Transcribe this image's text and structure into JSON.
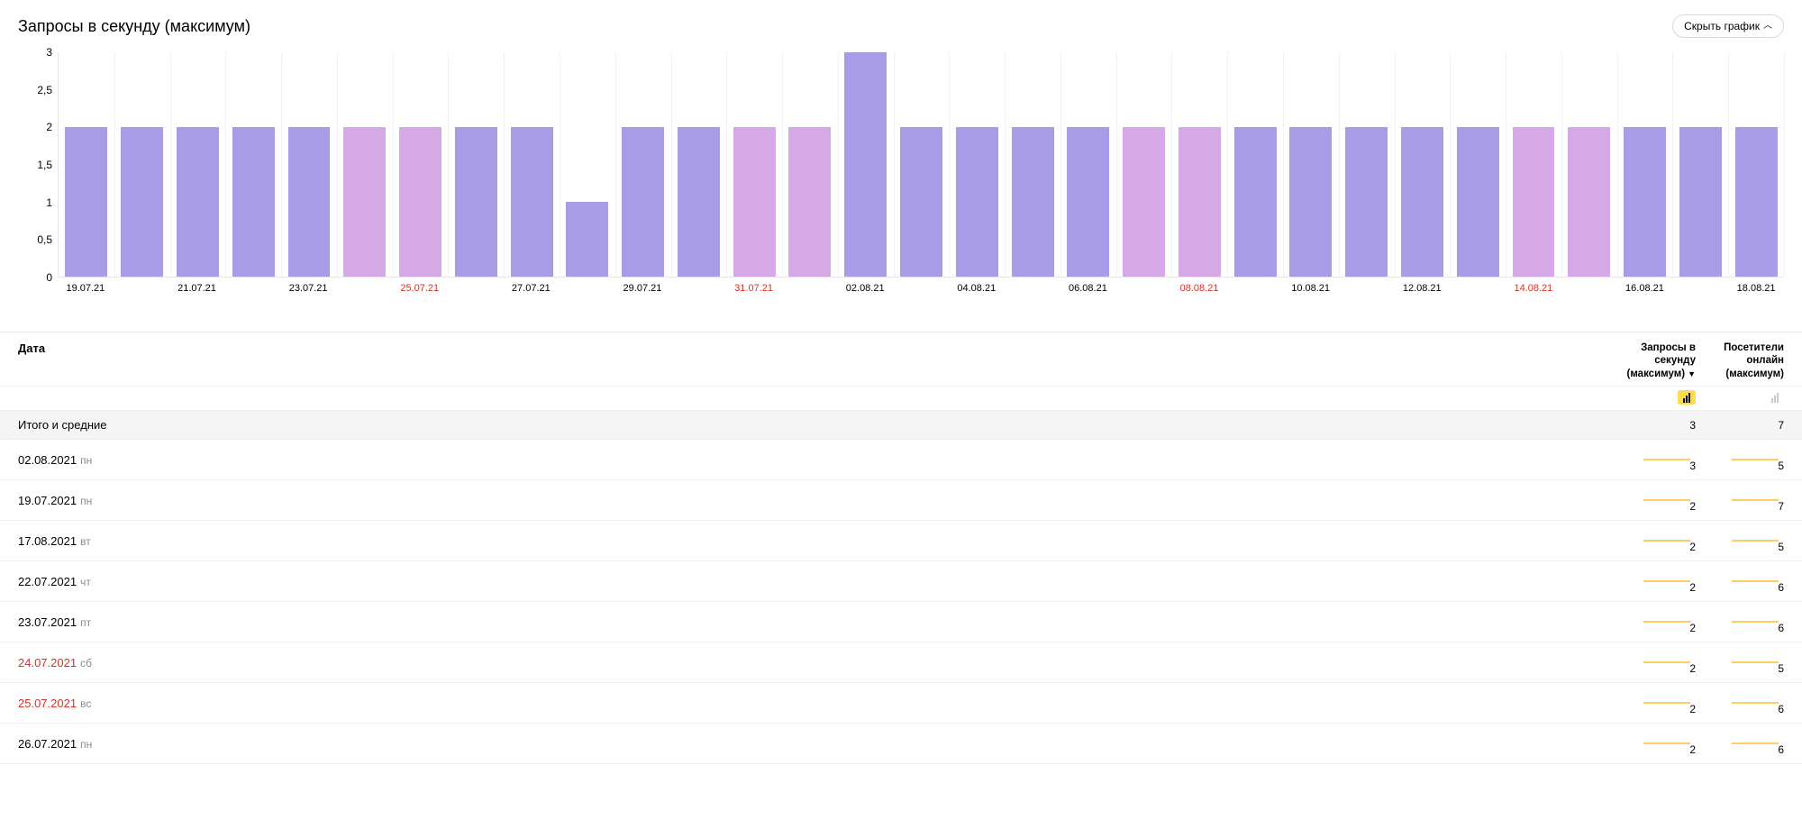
{
  "header": {
    "title": "Запросы в секунду (максимум)",
    "hide_button": "Скрыть график"
  },
  "chart": {
    "type": "bar",
    "ylim": [
      0,
      3
    ],
    "yticks": [
      0,
      0.5,
      1,
      1.5,
      2,
      2.5,
      3
    ],
    "ytick_labels": [
      "0",
      "0,5",
      "1",
      "1,5",
      "2",
      "2,5",
      "3"
    ],
    "grid_color": "#f2f2f2",
    "weekday_color": "#a99ce6",
    "weekend_color": "#d5a8e6",
    "weekend_label_color": "#d93025",
    "x_every": 2,
    "bars": [
      {
        "date": "19.07.21",
        "value": 2,
        "weekend": false
      },
      {
        "date": "20.07.21",
        "value": 2,
        "weekend": false
      },
      {
        "date": "21.07.21",
        "value": 2,
        "weekend": false
      },
      {
        "date": "22.07.21",
        "value": 2,
        "weekend": false
      },
      {
        "date": "23.07.21",
        "value": 2,
        "weekend": false
      },
      {
        "date": "24.07.21",
        "value": 2,
        "weekend": true
      },
      {
        "date": "25.07.21",
        "value": 2,
        "weekend": true
      },
      {
        "date": "26.07.21",
        "value": 2,
        "weekend": false
      },
      {
        "date": "27.07.21",
        "value": 2,
        "weekend": false
      },
      {
        "date": "28.07.21",
        "value": 1,
        "weekend": false
      },
      {
        "date": "29.07.21",
        "value": 2,
        "weekend": false
      },
      {
        "date": "30.07.21",
        "value": 2,
        "weekend": false
      },
      {
        "date": "31.07.21",
        "value": 2,
        "weekend": true
      },
      {
        "date": "01.08.21",
        "value": 2,
        "weekend": true
      },
      {
        "date": "02.08.21",
        "value": 3,
        "weekend": false
      },
      {
        "date": "03.08.21",
        "value": 2,
        "weekend": false
      },
      {
        "date": "04.08.21",
        "value": 2,
        "weekend": false
      },
      {
        "date": "05.08.21",
        "value": 2,
        "weekend": false
      },
      {
        "date": "06.08.21",
        "value": 2,
        "weekend": false
      },
      {
        "date": "07.08.21",
        "value": 2,
        "weekend": true
      },
      {
        "date": "08.08.21",
        "value": 2,
        "weekend": true
      },
      {
        "date": "09.08.21",
        "value": 2,
        "weekend": false
      },
      {
        "date": "10.08.21",
        "value": 2,
        "weekend": false
      },
      {
        "date": "11.08.21",
        "value": 2,
        "weekend": false
      },
      {
        "date": "12.08.21",
        "value": 2,
        "weekend": false
      },
      {
        "date": "13.08.21",
        "value": 2,
        "weekend": false
      },
      {
        "date": "14.08.21",
        "value": 2,
        "weekend": true
      },
      {
        "date": "15.08.21",
        "value": 2,
        "weekend": true
      },
      {
        "date": "16.08.21",
        "value": 2,
        "weekend": false
      },
      {
        "date": "17.08.21",
        "value": 2,
        "weekend": false
      },
      {
        "date": "18.08.21",
        "value": 2,
        "weekend": false
      }
    ]
  },
  "table": {
    "col_date": "Дата",
    "col_rps": "Запросы в секунду (максимум)",
    "col_visitors": "Посетители онлайн (максимум)",
    "sort_col": "rps",
    "totals_label": "Итого и средние",
    "totals": {
      "rps": 3,
      "visitors": 7
    },
    "spark_color": "#ffcc66",
    "rows": [
      {
        "date": "02.08.2021",
        "day": "пн",
        "weekend": false,
        "rps": 3,
        "visitors": 5
      },
      {
        "date": "19.07.2021",
        "day": "пн",
        "weekend": false,
        "rps": 2,
        "visitors": 7
      },
      {
        "date": "17.08.2021",
        "day": "вт",
        "weekend": false,
        "rps": 2,
        "visitors": 5
      },
      {
        "date": "22.07.2021",
        "day": "чт",
        "weekend": false,
        "rps": 2,
        "visitors": 6
      },
      {
        "date": "23.07.2021",
        "day": "пт",
        "weekend": false,
        "rps": 2,
        "visitors": 6
      },
      {
        "date": "24.07.2021",
        "day": "сб",
        "weekend": true,
        "rps": 2,
        "visitors": 5
      },
      {
        "date": "25.07.2021",
        "day": "вс",
        "weekend": true,
        "rps": 2,
        "visitors": 6
      },
      {
        "date": "26.07.2021",
        "day": "пн",
        "weekend": false,
        "rps": 2,
        "visitors": 6
      }
    ]
  }
}
